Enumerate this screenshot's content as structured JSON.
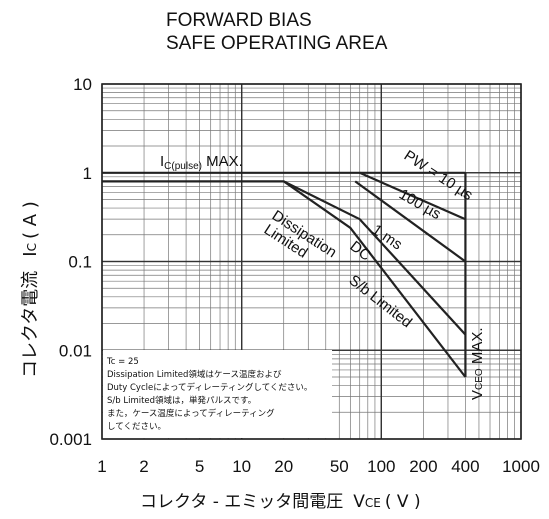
{
  "chart_data": {
    "type": "line",
    "title_line1": "FORWARD BIAS",
    "title_line2": "SAFE OPERATING AREA",
    "ylabel_text": "コレクタ電流",
    "ylabel_symbol": "I",
    "ylabel_sub": "C",
    "ylabel_unit": "( A )",
    "xlabel_text": "コレクタ - エミッタ間電圧",
    "xlabel_symbol": "V",
    "xlabel_sub": "CE",
    "xlabel_unit": "( V )",
    "x_scale": "log",
    "y_scale": "log",
    "xlim": [
      1,
      1000
    ],
    "ylim": [
      0.001,
      10
    ],
    "grid": true,
    "x_ticks": [
      {
        "value": 1,
        "label": "1"
      },
      {
        "value": 2,
        "label": "2"
      },
      {
        "value": 5,
        "label": "5"
      },
      {
        "value": 10,
        "label": "10"
      },
      {
        "value": 20,
        "label": "20"
      },
      {
        "value": 50,
        "label": "50"
      },
      {
        "value": 100,
        "label": "100"
      },
      {
        "value": 200,
        "label": "200"
      },
      {
        "value": 400,
        "label": "400"
      },
      {
        "value": 1000,
        "label": "1000"
      }
    ],
    "y_ticks": [
      {
        "value": 10,
        "label": "10"
      },
      {
        "value": 1,
        "label": "1"
      },
      {
        "value": 0.1,
        "label": "0.1"
      },
      {
        "value": 0.01,
        "label": "0.01"
      },
      {
        "value": 0.001,
        "label": "0.001"
      }
    ],
    "series": [
      {
        "key": "pulse",
        "points": [
          [
            1,
            1.0
          ],
          [
            400,
            1.0
          ]
        ]
      },
      {
        "key": "pw10us",
        "points": [
          [
            70,
            1.0
          ],
          [
            400,
            0.3
          ]
        ]
      },
      {
        "key": "pw100us",
        "points": [
          [
            65,
            0.8
          ],
          [
            400,
            0.1
          ]
        ]
      },
      {
        "key": "pw1ms",
        "points": [
          [
            20,
            0.8
          ],
          [
            70,
            0.3
          ],
          [
            400,
            0.015
          ]
        ]
      },
      {
        "key": "dc",
        "points": [
          [
            1,
            0.8
          ],
          [
            20,
            0.8
          ],
          [
            60,
            0.24
          ],
          [
            400,
            0.005
          ]
        ]
      }
    ],
    "annotations": [
      {
        "key": "pulse",
        "main": "I",
        "sub": "C(pulse)",
        "rest": " MAX."
      },
      {
        "key": "pw10",
        "text": "PW = 10 µs"
      },
      {
        "key": "pw100",
        "text": "100 µs"
      },
      {
        "key": "ms1",
        "text": "1 ms"
      },
      {
        "key": "dc",
        "text": "DC"
      },
      {
        "key": "sb",
        "text": "S/b Limited"
      },
      {
        "key": "diss1",
        "text": "Dissipation"
      },
      {
        "key": "diss2",
        "text": "Limited"
      },
      {
        "key": "vceo",
        "main": "V",
        "sub": "CEO",
        "rest": " MAX."
      }
    ],
    "note_lines": [
      "Tc = 25",
      "Dissipation Limited領域はケース温度および",
      "Duty Cycleによってディレーティングしてください。",
      "S/b Limited領域は，単発パルスです。",
      "また，ケース温度によってディレーティング",
      "してください。"
    ]
  }
}
